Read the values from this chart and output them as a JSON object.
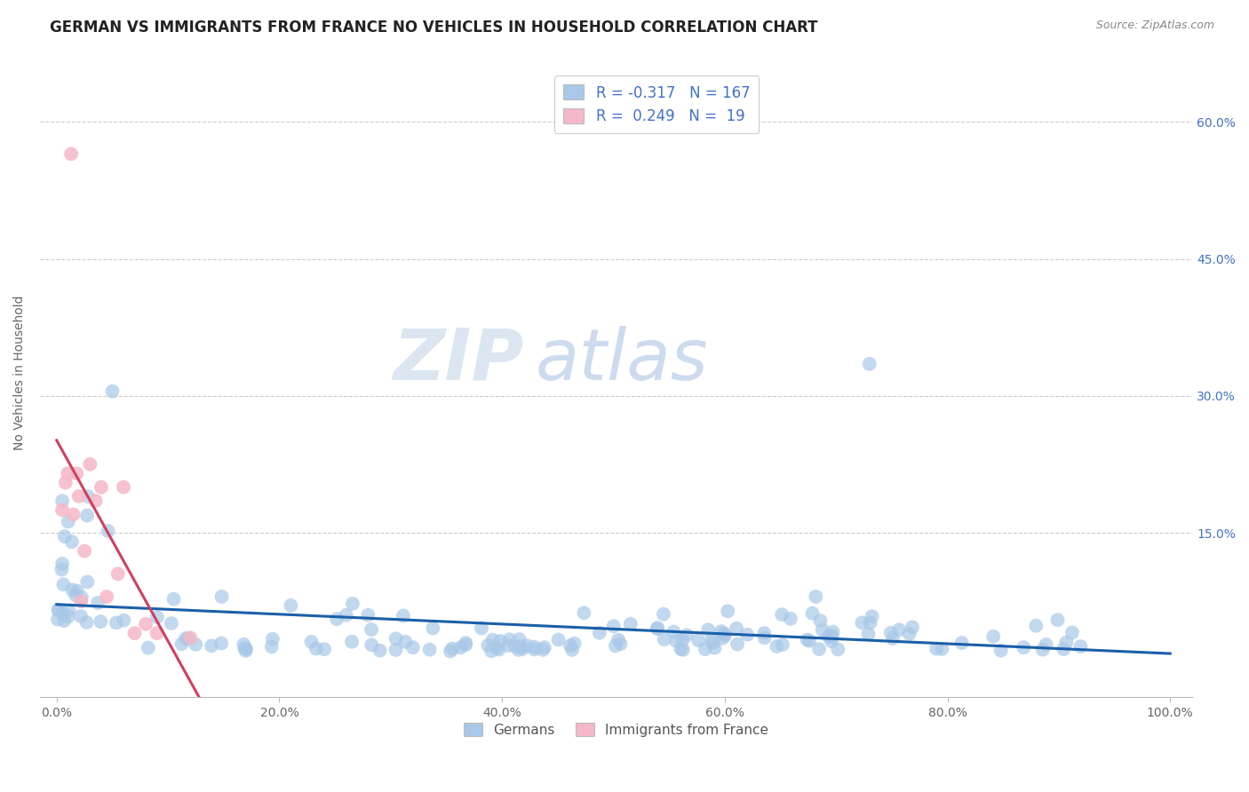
{
  "title": "GERMAN VS IMMIGRANTS FROM FRANCE NO VEHICLES IN HOUSEHOLD CORRELATION CHART",
  "source": "Source: ZipAtlas.com",
  "ylabel": "No Vehicles in Household",
  "watermark_zip": "ZIP",
  "watermark_atlas": "atlas",
  "legend_german_R": -0.317,
  "legend_german_N": 167,
  "legend_france_R": 0.249,
  "legend_france_N": 19,
  "german_color": "#a8c8e8",
  "france_color": "#f5b8c8",
  "german_line_color": "#1a5fa8",
  "france_line_color": "#d04060",
  "france_dashed_color": "#e8a0b0",
  "tick_color": "#4472c4",
  "grid_color": "#cccccc",
  "background_color": "#ffffff",
  "title_fontsize": 12,
  "axis_fontsize": 10,
  "tick_fontsize": 10,
  "legend_fontsize": 12
}
